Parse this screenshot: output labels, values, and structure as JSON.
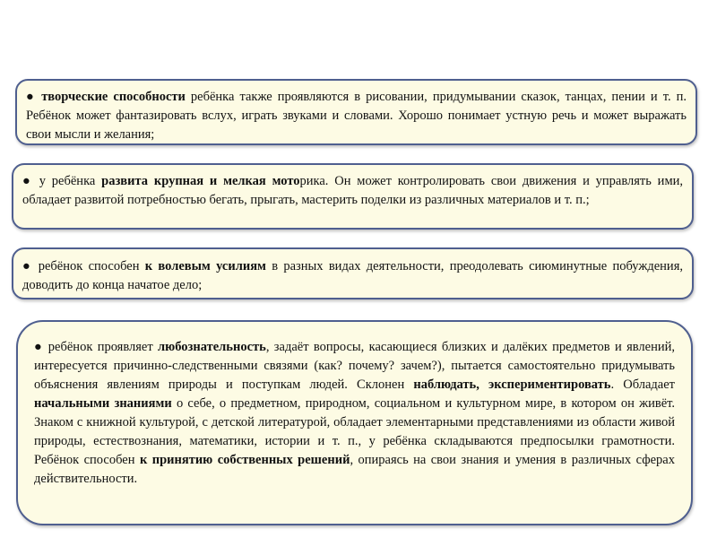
{
  "blocks": [
    {
      "runs": [
        {
          "text": "● "
        },
        {
          "text": "творческие способности",
          "bold": true
        },
        {
          "text": " ребёнка также проявляются в рисовании, придумывании сказок, танцах, пении и т. п. Ребёнок может фантазировать вслух, играть звуками и словами. Хорошо понимает устную речь и может выражать свои мысли и желания;"
        }
      ]
    },
    {
      "runs": [
        {
          "text": "● у ребёнка "
        },
        {
          "text": "развита крупная и мелкая мото",
          "bold": true
        },
        {
          "text": "рика. Он может контролировать свои движения и управлять ими, обладает развитой потребностью бегать, прыгать, мастерить поделки из различных материалов и т. п.;"
        }
      ]
    },
    {
      "runs": [
        {
          "text": "● ребёнок способен "
        },
        {
          "text": "к волевым усилиям",
          "bold": true
        },
        {
          "text": " в разных видах деятельности, преодолевать сиюминутные побуждения, доводить до конца начатое дело;"
        }
      ]
    },
    {
      "runs": [
        {
          "text": "● ребёнок проявляет "
        },
        {
          "text": "любознательность",
          "bold": true
        },
        {
          "text": ", задаёт вопросы, касающиеся близких и далёких предметов и явлений, интересуется причинно-следственными связями (как? почему? зачем?), пытается самостоятельно придумывать объяснения явлениям природы и поступкам людей. Склонен "
        },
        {
          "text": "наблюдать, экспериментировать",
          "bold": true
        },
        {
          "text": ". Обладает "
        },
        {
          "text": "начальными знаниями",
          "bold": true
        },
        {
          "text": " о себе, о предметном, природном, социальном и культурном мире, в котором он живёт. Знаком с книжной культурой, с детской литературой, обладает элементарными представлениями из области живой природы, естествознания, математики, истории и т. п., у ребёнка складываются предпосылки грамотности. Ребёнок способен "
        },
        {
          "text": "к принятию собственных решений",
          "bold": true
        },
        {
          "text": ", опираясь на свои знания и умения в различных сферах действительности."
        }
      ]
    }
  ]
}
